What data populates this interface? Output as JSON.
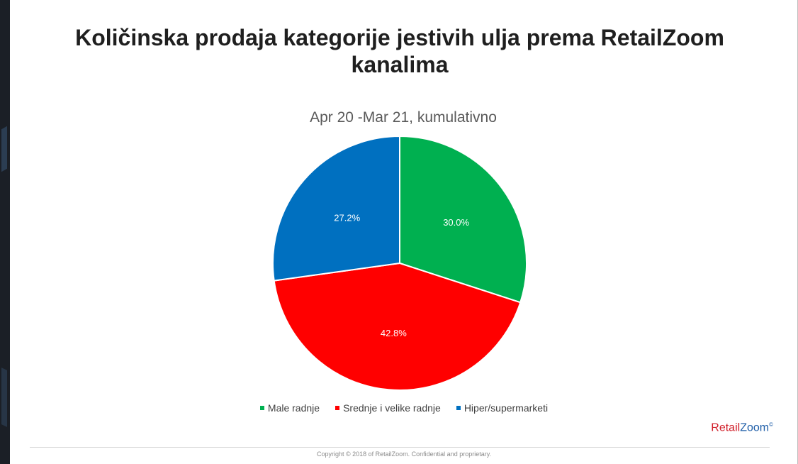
{
  "title": "Količinska prodaja kategorije jestivih ulja prema RetailZoom kanalima",
  "brand": {
    "part1": "Retail",
    "part2": "Zoom",
    "mark": "©"
  },
  "footer": {
    "copyright": "Copyright © 2018 of RetailZoom. Confidential and proprietary."
  },
  "chart_data": {
    "type": "pie",
    "title": "Apr 20 -Mar 21, kumulativno",
    "slices": [
      {
        "label": "Male radnje",
        "value": 30.0,
        "display": "30.0%",
        "color": "#00b050"
      },
      {
        "label": "Srednje i velike radnje",
        "value": 42.8,
        "display": "42.8%",
        "color": "#ff0000"
      },
      {
        "label": "Hiper/supermarketi",
        "value": 27.2,
        "display": "27.2%",
        "color": "#0070c0"
      }
    ],
    "legend_position": "bottom"
  }
}
